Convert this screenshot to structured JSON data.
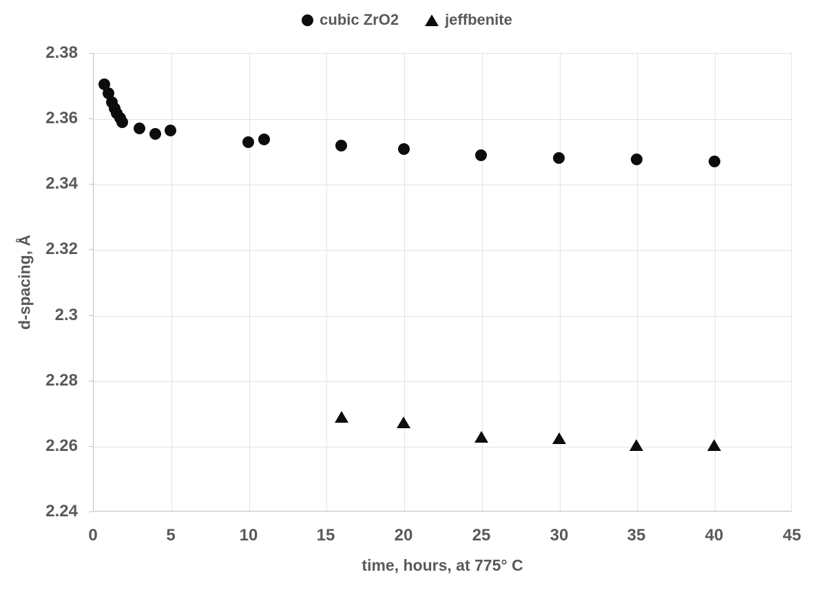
{
  "colors": {
    "background": "#ffffff",
    "text": "#595959",
    "axis_line": "#bfbfbf",
    "gridline": "#e2e2e2",
    "marker": "#0d0d0d"
  },
  "chart_data": {
    "type": "scatter",
    "title": "",
    "xlabel": "time, hours, at 775° C",
    "ylabel": "d-spacing, Å",
    "xlim": [
      0,
      45
    ],
    "ylim": [
      2.24,
      2.38
    ],
    "x_ticks": [
      0,
      5,
      10,
      15,
      20,
      25,
      30,
      35,
      40,
      45
    ],
    "y_ticks": [
      "2.38",
      "2.36",
      "2.34",
      "2.32",
      "2.3",
      "2.28",
      "2.26",
      "2.24"
    ],
    "grid": true,
    "legend_position": "top-center",
    "series": [
      {
        "name": "cubic ZrO2",
        "marker": "circle",
        "points": [
          [
            0.75,
            2.3705
          ],
          [
            1.0,
            2.3678
          ],
          [
            1.2,
            2.3649
          ],
          [
            1.4,
            2.3631
          ],
          [
            1.55,
            2.3617
          ],
          [
            1.75,
            2.3602
          ],
          [
            1.9,
            2.3588
          ],
          [
            3,
            2.357
          ],
          [
            4,
            2.3552
          ],
          [
            5,
            2.3563
          ],
          [
            10,
            2.3528
          ],
          [
            11,
            2.3536
          ],
          [
            16,
            2.3518
          ],
          [
            20,
            2.3506
          ],
          [
            25,
            2.3488
          ],
          [
            30,
            2.348
          ],
          [
            35,
            2.3476
          ],
          [
            40,
            2.3469
          ]
        ]
      },
      {
        "name": "jeffbenite",
        "marker": "triangle",
        "points": [
          [
            16,
            2.269
          ],
          [
            20,
            2.2672
          ],
          [
            25,
            2.2629
          ],
          [
            30,
            2.2624
          ],
          [
            35,
            2.2603
          ],
          [
            40,
            2.2603
          ]
        ]
      }
    ]
  }
}
